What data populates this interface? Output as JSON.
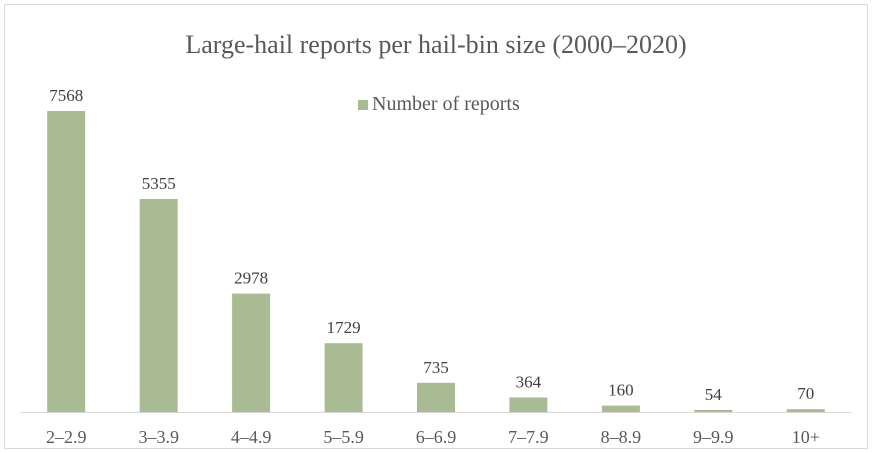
{
  "chart_data": {
    "type": "bar",
    "title": "Large-hail reports per hail-bin size (2000–2020)",
    "categories": [
      "2–2.9",
      "3–3.9",
      "4–4.9",
      "5–5.9",
      "6–6.9",
      "7–7.9",
      "8–8.9",
      "9–9.9",
      "10+"
    ],
    "series": [
      {
        "name": "Number of reports",
        "values": [
          7568,
          5355,
          2978,
          1729,
          735,
          364,
          160,
          54,
          70
        ],
        "color": "#a9bb93"
      }
    ],
    "xlabel": "",
    "ylabel": "",
    "ylim": [
      0,
      7568
    ],
    "grid": false,
    "legend": "top-center",
    "data_labels": true
  }
}
